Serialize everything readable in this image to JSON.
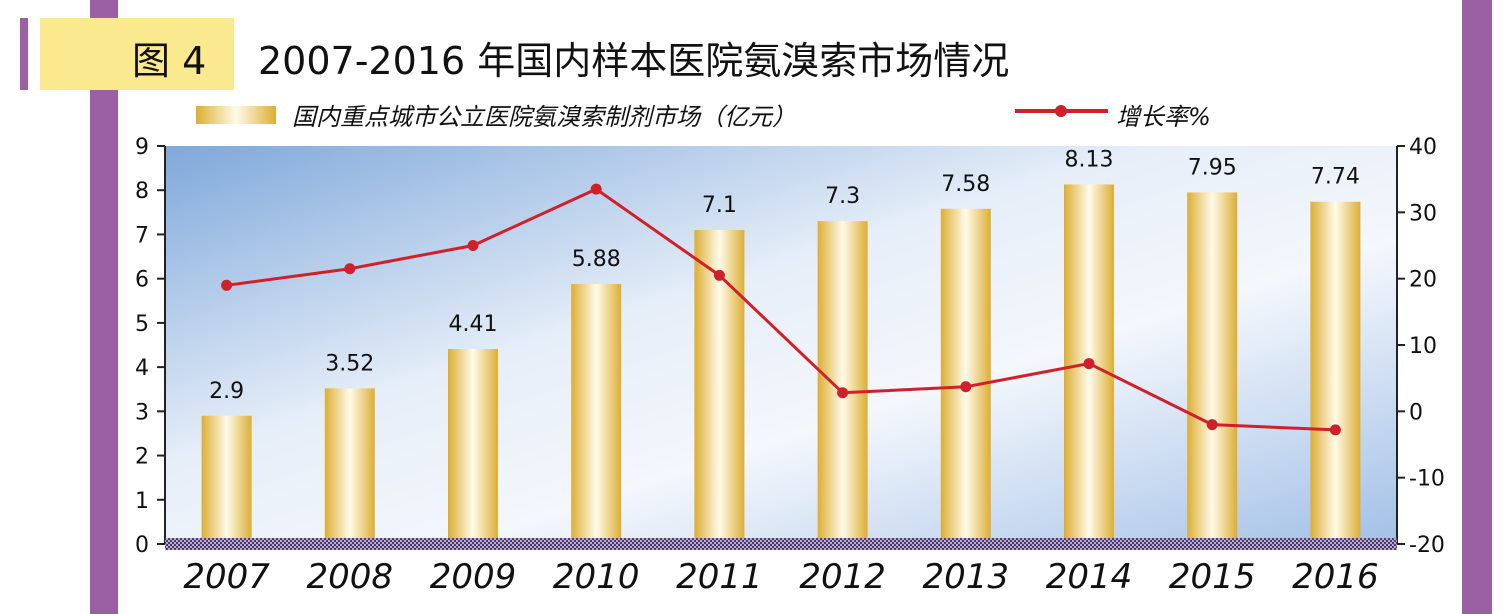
{
  "figure": {
    "tag": "图 4",
    "title": "2007-2016 年国内样本医院氨溴索市场情况"
  },
  "chart_data": {
    "type": "bar",
    "categories": [
      "2007",
      "2008",
      "2009",
      "2010",
      "2011",
      "2012",
      "2013",
      "2014",
      "2015",
      "2016"
    ],
    "series": [
      {
        "name": "国内重点城市公立医院氨溴索制剂市场（亿元）",
        "type": "bar",
        "axis": "left",
        "values": [
          2.9,
          3.52,
          4.41,
          5.88,
          7.1,
          7.3,
          7.58,
          8.13,
          7.95,
          7.74
        ],
        "labels": [
          "2.9",
          "3.52",
          "4.41",
          "5.88",
          "7.1",
          "7.3",
          "7.58",
          "8.13",
          "7.95",
          "7.74"
        ]
      },
      {
        "name": "增长率%",
        "type": "line",
        "axis": "right",
        "values": [
          19,
          21.5,
          25,
          33.5,
          20.5,
          2.8,
          3.7,
          7.2,
          -2,
          -2.8
        ]
      }
    ],
    "y_left": {
      "min": 0,
      "max": 9,
      "ticks": [
        "0",
        "1",
        "2",
        "3",
        "4",
        "5",
        "6",
        "7",
        "8",
        "9"
      ]
    },
    "y_right": {
      "min": -20,
      "max": 40,
      "ticks": [
        "-20",
        "-10",
        "0",
        "10",
        "20",
        "30",
        "40"
      ]
    },
    "legend": "top",
    "colors": {
      "line": "#d0202a",
      "bar": "#e8c14a",
      "plot_bg": "#a9c6ea"
    }
  }
}
